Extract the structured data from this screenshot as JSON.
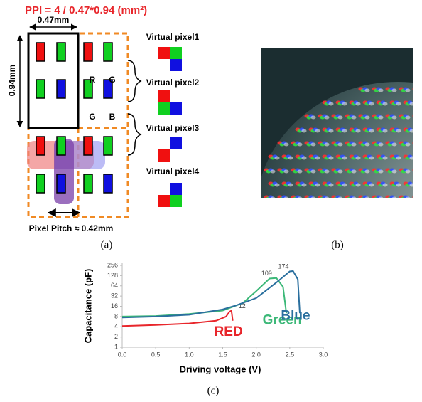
{
  "panel_a": {
    "formula": "PPI = 4 / 0.47*0.94 (mm²)",
    "width_label": "0.47mm",
    "height_label": "0.94mm",
    "subpixel_labels": [
      "R",
      "G",
      "G",
      "B"
    ],
    "virtual_pixels": [
      "Virtual pixel1",
      "Virtual pixel2",
      "Virtual pixel3",
      "Virtual pixel4"
    ],
    "pitch_label": "Pixel Pitch ≈ 0.42mm",
    "caption": "(a)"
  },
  "panel_b": {
    "caption": "(b)"
  },
  "chart_data": {
    "type": "line",
    "x_label": "Driving voltage (V)",
    "y_label": "Capacitance (pF)",
    "caption": "(c)",
    "xlim": [
      0,
      3
    ],
    "xticks": [
      {
        "value": 0,
        "label": "0.0"
      },
      0.5,
      {
        "value": 1,
        "label": "1.0"
      },
      1.5,
      {
        "value": 2,
        "label": "2.0"
      },
      2.5,
      {
        "value": 3,
        "label": "3.0"
      }
    ],
    "ylim": [
      1,
      256
    ],
    "yticks": [
      1,
      2,
      4,
      8,
      16,
      32,
      64,
      128,
      256
    ],
    "log_scale": "y",
    "grid": false,
    "series": [
      {
        "name": "RED",
        "color": "#e8262b",
        "peak_label": "12",
        "x": [
          0,
          0.5,
          1.0,
          1.4,
          1.55,
          1.6,
          1.63,
          1.65
        ],
        "values": [
          4.2,
          4.5,
          5,
          6,
          8,
          11,
          12,
          6
        ]
      },
      {
        "name": "Green",
        "color": "#3cb878",
        "peak_label": "109",
        "x": [
          0,
          0.5,
          1.0,
          1.5,
          1.8,
          2.0,
          2.2,
          2.3,
          2.4,
          2.45
        ],
        "values": [
          8,
          8.3,
          9.5,
          12,
          20,
          45,
          105,
          109,
          60,
          10
        ]
      },
      {
        "name": "Blue",
        "color": "#2a6f9e",
        "peak_label": "174",
        "x": [
          0,
          0.5,
          1.0,
          1.5,
          1.7,
          2.0,
          2.3,
          2.5,
          2.55,
          2.62,
          2.65
        ],
        "values": [
          7.5,
          8,
          9,
          13,
          17,
          28,
          80,
          170,
          174,
          100,
          10
        ]
      }
    ]
  }
}
